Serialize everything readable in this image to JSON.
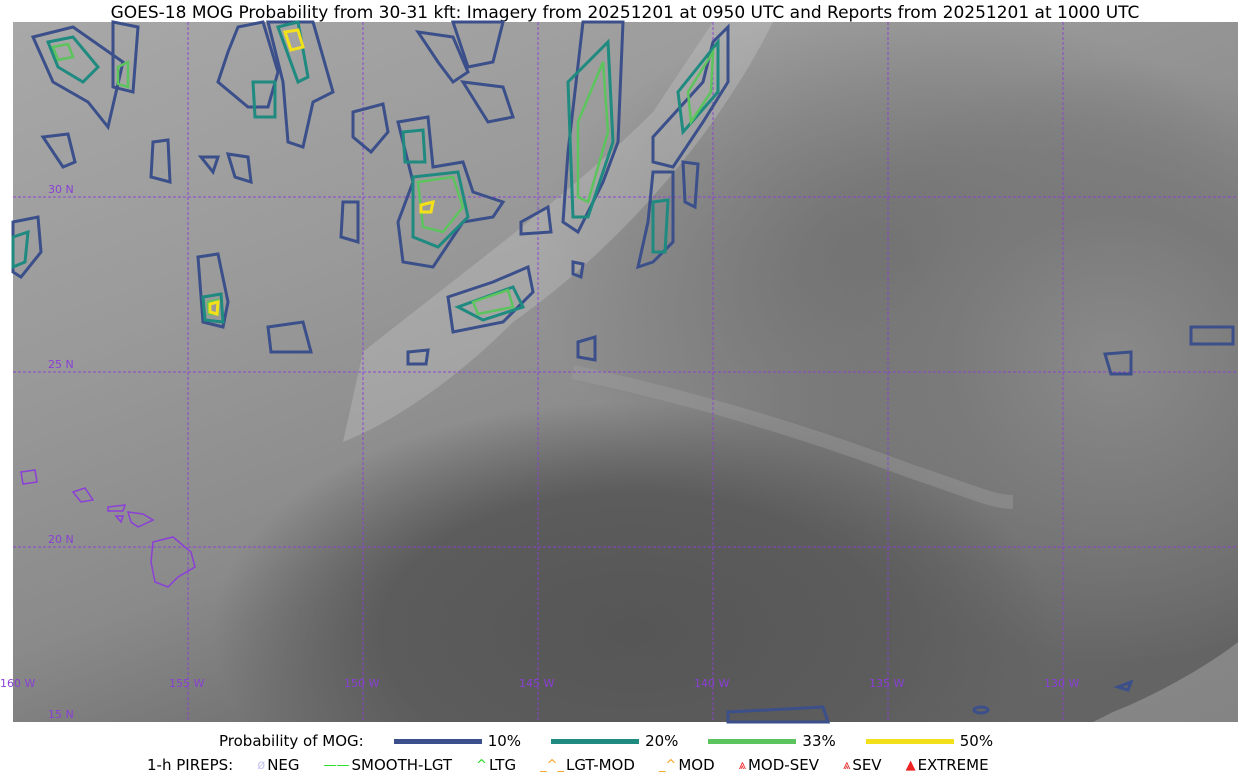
{
  "title": "GOES-18 MOG Probability from 30-31 kft: Imagery from 20251201 at 0950 UTC and Reports from 20251201 at 1000 UTC",
  "map": {
    "latitude_labels": [
      "30 N",
      "25 N",
      "20 N",
      "15 N"
    ],
    "longitude_labels": [
      "160 W",
      "155 W",
      "150 W",
      "145 W",
      "140 W",
      "135 W",
      "130 W"
    ],
    "grid_color": "#8b3fd6",
    "coastline_color": "#8b3fd6"
  },
  "legend": {
    "probability_label": "Probability of MOG:",
    "levels": [
      {
        "label": "10%",
        "color": "#3b4f8a"
      },
      {
        "label": "20%",
        "color": "#1f8a80"
      },
      {
        "label": "33%",
        "color": "#5cc45c"
      },
      {
        "label": "50%",
        "color": "#f2e11a"
      }
    ],
    "pireps_label": "1-h PIREPS:",
    "pireps": [
      {
        "label": "NEG",
        "color": "#c8c8f0",
        "icon": "neg-icon"
      },
      {
        "label": "SMOOTH-LGT",
        "color": "#22dd22",
        "icon": "line-icon"
      },
      {
        "label": "LTG",
        "color": "#22dd22",
        "icon": "caret-icon"
      },
      {
        "label": "LGT-MOD",
        "color": "#f5a623",
        "icon": "caret-bar-icon"
      },
      {
        "label": "MOD",
        "color": "#f5a623",
        "icon": "caret-icon"
      },
      {
        "label": "MOD-SEV",
        "color": "#ee2222",
        "icon": "double-caret-bar-icon"
      },
      {
        "label": "SEV",
        "color": "#ee2222",
        "icon": "double-caret-icon"
      },
      {
        "label": "EXTREME",
        "color": "#ee2222",
        "icon": "filled-triangle-icon"
      }
    ]
  }
}
